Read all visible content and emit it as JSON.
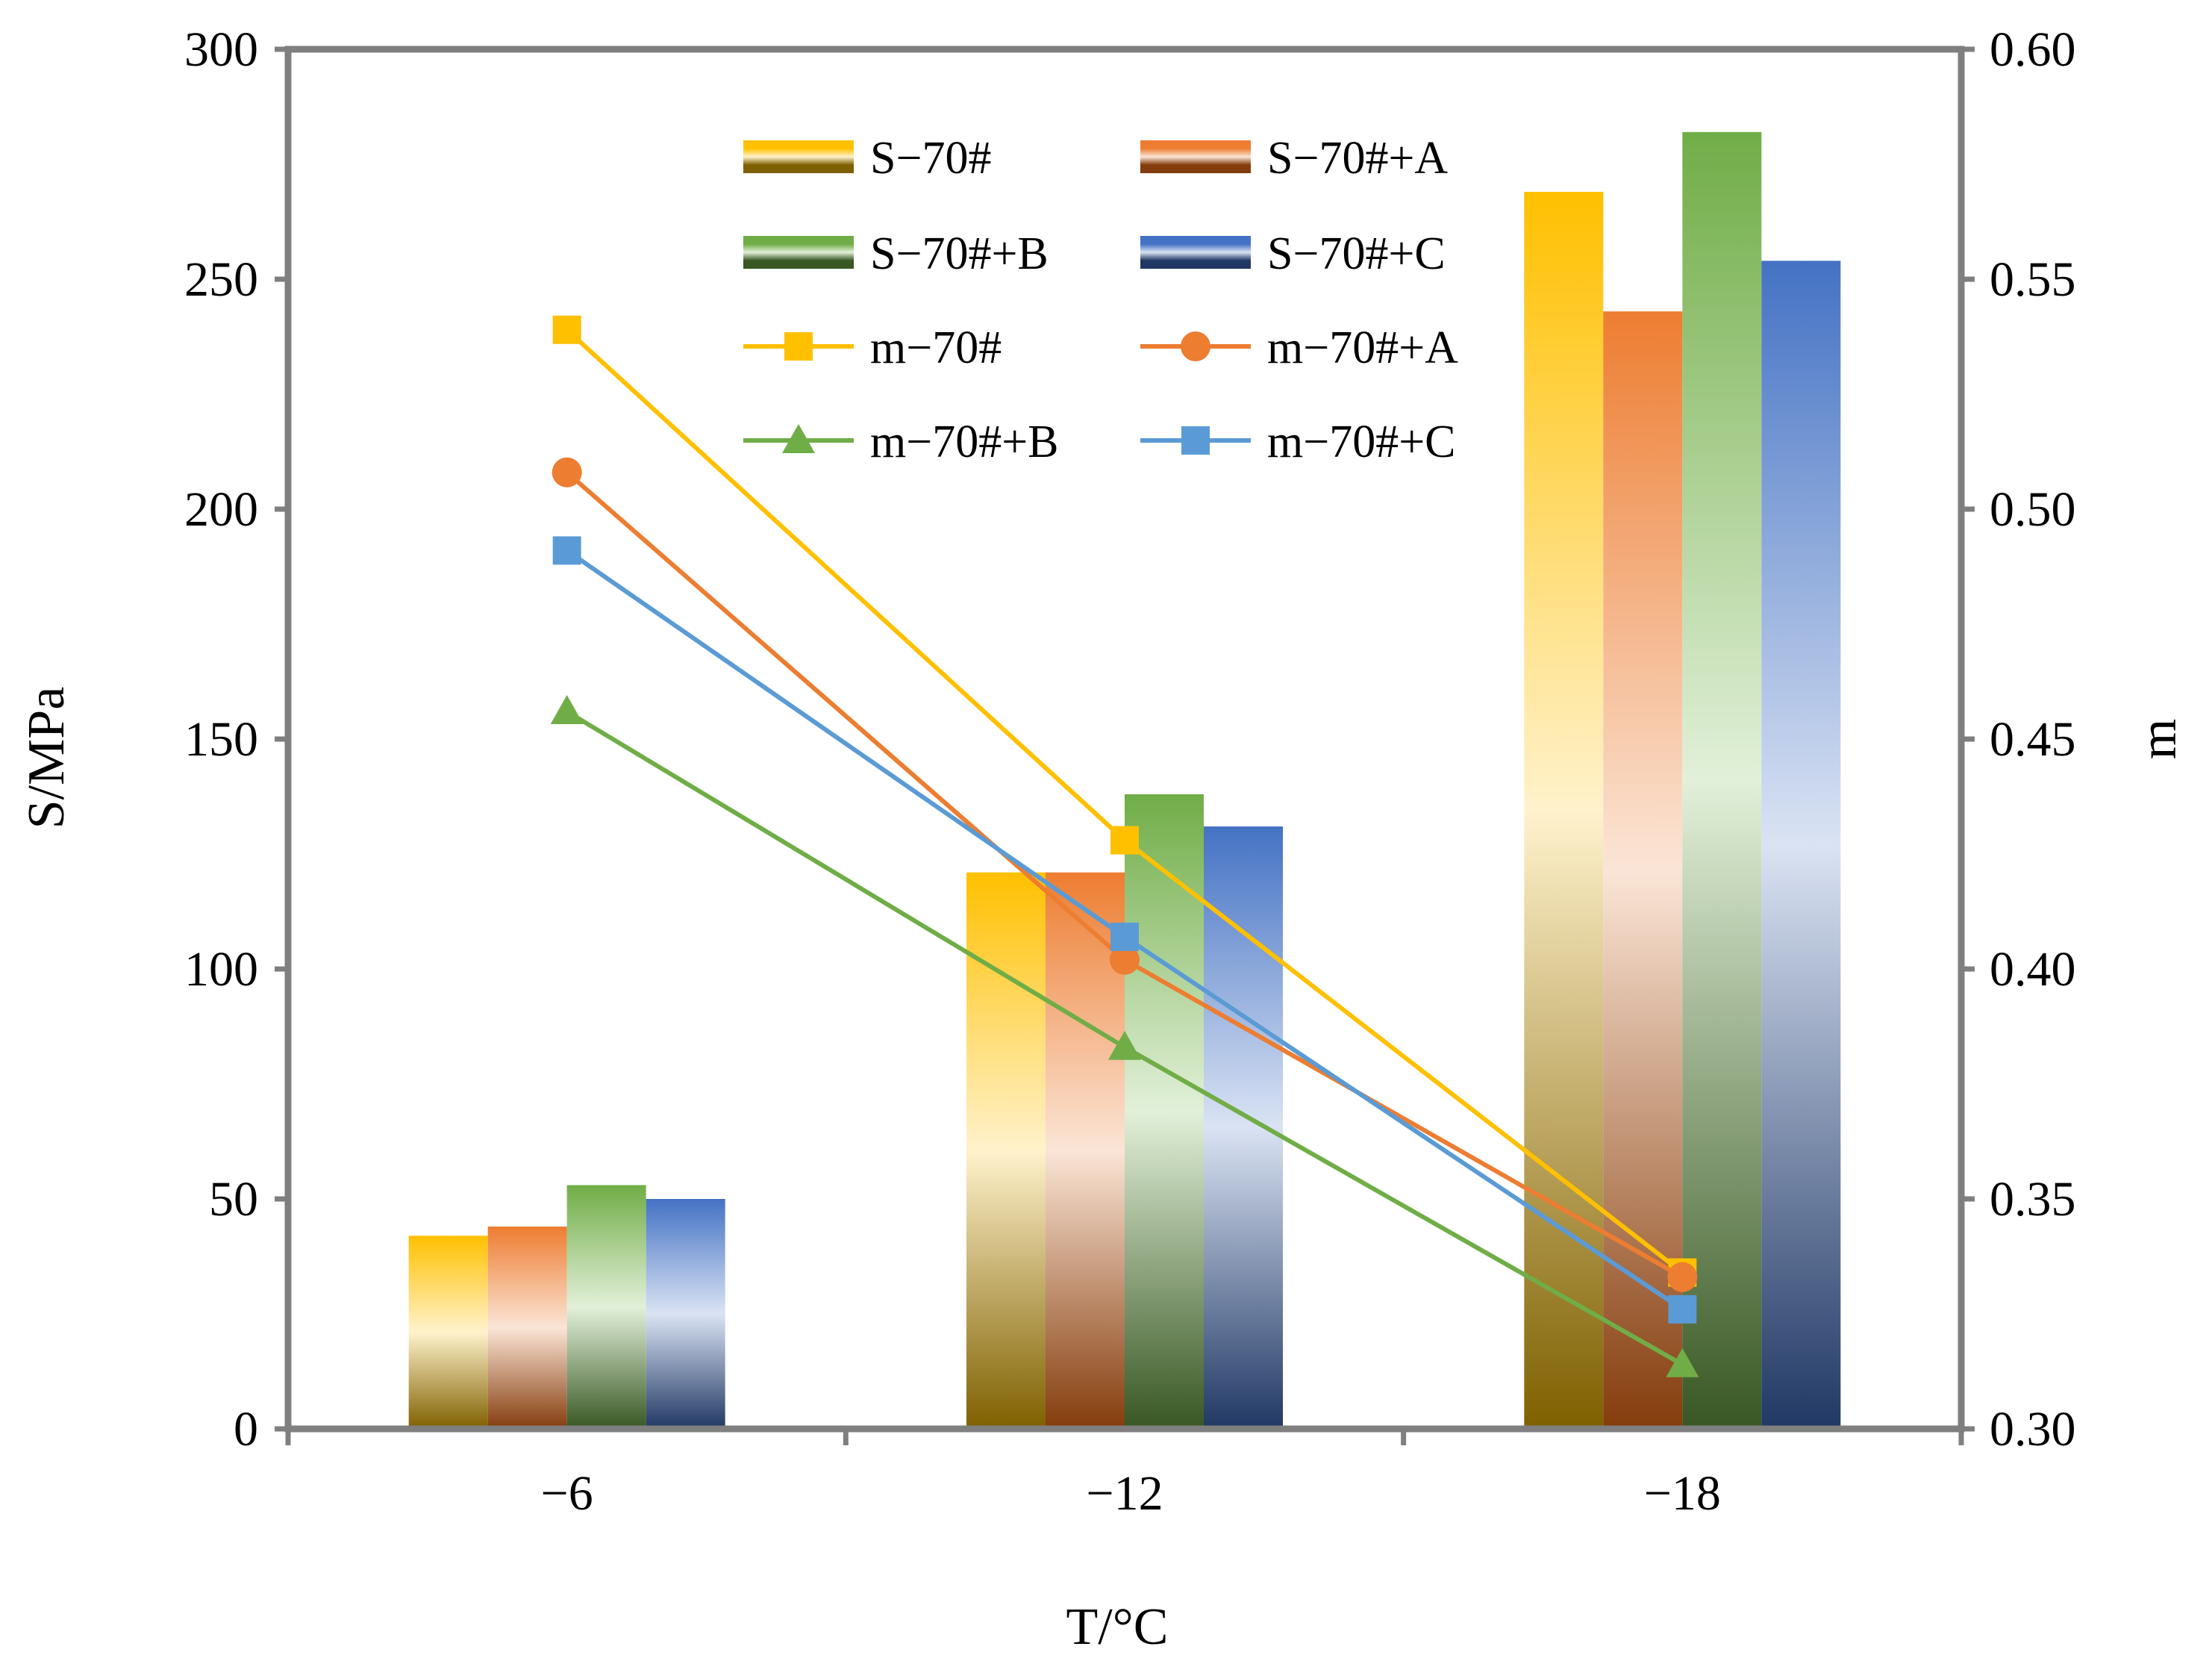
{
  "chart_data": {
    "type": "bar+line",
    "categories": [
      "−6",
      "−12",
      "−18"
    ],
    "xlabel": "T/°C",
    "ylabel_left": "S/MPa",
    "ylabel_right": "m",
    "ylim_left": [
      0,
      300
    ],
    "yticks_left": [
      "0",
      "50",
      "100",
      "150",
      "200",
      "250",
      "300"
    ],
    "ylim_right": [
      0.3,
      0.6
    ],
    "yticks_right": [
      "0.30",
      "0.35",
      "0.40",
      "0.45",
      "0.50",
      "0.55",
      "0.60"
    ],
    "bar_series": [
      {
        "name": "S−70#",
        "values": [
          42,
          121,
          269
        ],
        "color": "#FFC000",
        "light": "#FFF2CC",
        "dark": "#7F6000"
      },
      {
        "name": "S−70#+A",
        "values": [
          44,
          121,
          243
        ],
        "color": "#ED7D31",
        "light": "#FBE5D6",
        "dark": "#843C0C"
      },
      {
        "name": "S−70#+B",
        "values": [
          53,
          138,
          282
        ],
        "color": "#70AD47",
        "light": "#E2F0D9",
        "dark": "#385723"
      },
      {
        "name": "S−70#+C",
        "values": [
          50,
          131,
          254
        ],
        "color": "#4472C4",
        "light": "#DAE3F3",
        "dark": "#203864"
      }
    ],
    "line_series": [
      {
        "name": "m−70#",
        "values": [
          0.539,
          0.428,
          0.334
        ],
        "color": "#FFC000",
        "marker": "square"
      },
      {
        "name": "m−70#+A",
        "values": [
          0.508,
          0.402,
          0.333
        ],
        "color": "#ED7D31",
        "marker": "circle"
      },
      {
        "name": "m−70#+B",
        "values": [
          0.456,
          0.383,
          0.314
        ],
        "color": "#70AD47",
        "marker": "triangle"
      },
      {
        "name": "m−70#+C",
        "values": [
          0.491,
          0.407,
          0.326
        ],
        "color": "#5B9BD5",
        "marker": "square"
      }
    ],
    "legend": {
      "position": "top",
      "entries": [
        "S−70#",
        "S−70#+A",
        "S−70#+B",
        "S−70#+C",
        "m−70#",
        "m−70#+A",
        "m−70#+B",
        "m−70#+C"
      ]
    }
  }
}
